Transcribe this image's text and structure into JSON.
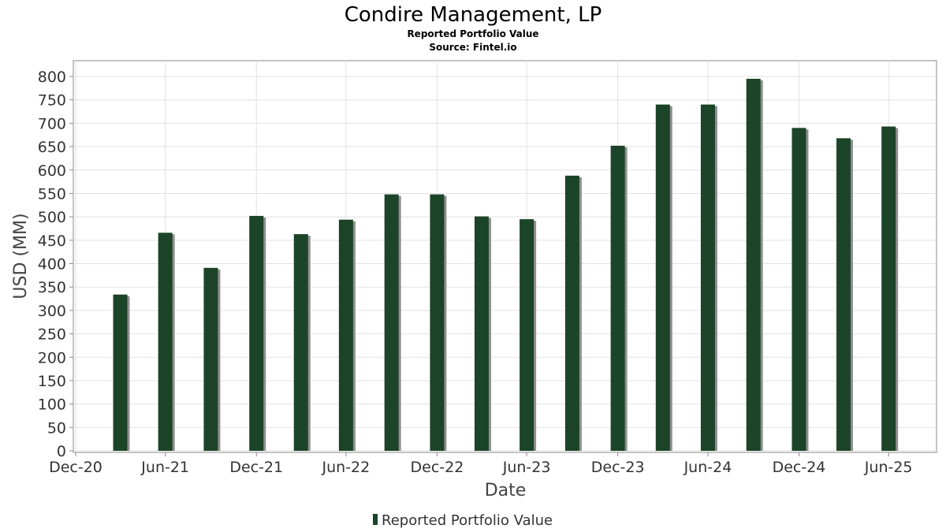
{
  "chart_data": {
    "type": "bar",
    "title": "Condire Management, LP",
    "subtitle": "Reported Portfolio Value",
    "source": "Source: Fintel.io",
    "xlabel": "Date",
    "ylabel": "USD (MM)",
    "ylim": [
      0,
      800
    ],
    "yticks": [
      0,
      50,
      100,
      150,
      200,
      250,
      300,
      350,
      400,
      450,
      500,
      550,
      600,
      650,
      700,
      750,
      800
    ],
    "xticks": [
      "Dec-20",
      "Jun-21",
      "Dec-21",
      "Jun-22",
      "Dec-22",
      "Jun-23",
      "Dec-23",
      "Jun-24",
      "Dec-24",
      "Jun-25"
    ],
    "grid": true,
    "legend_position": "bottom",
    "bar_color": "#1c4428",
    "series": [
      {
        "name": "Reported Portfolio Value",
        "points": [
          {
            "date": "2021-03-31",
            "value": 334
          },
          {
            "date": "2021-06-30",
            "value": 466
          },
          {
            "date": "2021-09-30",
            "value": 391
          },
          {
            "date": "2021-12-31",
            "value": 502
          },
          {
            "date": "2022-03-31",
            "value": 463
          },
          {
            "date": "2022-06-30",
            "value": 494
          },
          {
            "date": "2022-09-30",
            "value": 548
          },
          {
            "date": "2022-12-31",
            "value": 548
          },
          {
            "date": "2023-03-31",
            "value": 501
          },
          {
            "date": "2023-06-30",
            "value": 495
          },
          {
            "date": "2023-09-30",
            "value": 588
          },
          {
            "date": "2023-12-31",
            "value": 652
          },
          {
            "date": "2024-03-31",
            "value": 740
          },
          {
            "date": "2024-06-30",
            "value": 740
          },
          {
            "date": "2024-09-30",
            "value": 795
          },
          {
            "date": "2024-12-31",
            "value": 690
          },
          {
            "date": "2025-03-31",
            "value": 668
          },
          {
            "date": "2025-06-30",
            "value": 693
          }
        ]
      }
    ]
  }
}
